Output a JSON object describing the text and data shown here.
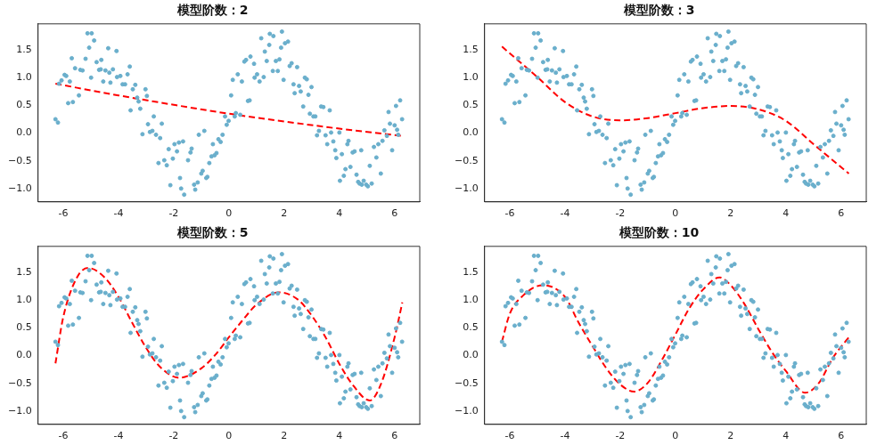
{
  "chart_data": [
    {
      "type": "scatter",
      "title": "模型阶数：2",
      "xlim": [
        -6.91,
        6.91
      ],
      "xticks": [
        -6,
        -4,
        -2,
        0,
        2,
        4,
        6
      ],
      "ylim": [
        -1.24,
        1.97
      ],
      "yticks": [
        {
          "value": -1,
          "label": "−1.0"
        },
        {
          "value": -0.5,
          "label": "−0.5"
        },
        {
          "value": 0,
          "label": "0.0"
        },
        {
          "value": 0.5,
          "label": "0.5"
        },
        {
          "value": 1,
          "label": "1.0"
        },
        {
          "value": 1.5,
          "label": "1.5"
        }
      ],
      "grid": false,
      "legend": false,
      "series": [
        {
          "type": "scatter",
          "marker": "circle",
          "color": "#6aafcc",
          "x": [
            -6.28,
            -6.19,
            -6.15,
            -6.06,
            -5.95,
            -5.89,
            -5.82,
            -5.76,
            -5.65,
            -5.69,
            -5.57,
            -5.43,
            -5.38,
            -5.3,
            -5.19,
            -5.12,
            -4.97,
            -4.99,
            -4.88,
            -5.06,
            -4.79,
            -4.7,
            -4.64,
            -4.62,
            -4.55,
            -4.47,
            -4.37,
            -4.33,
            -4.29,
            -4.2,
            -4.07,
            -4.05,
            -3.93,
            -3.85,
            -3.76,
            -3.67,
            -3.59,
            -3.56,
            -3.48,
            -3.39,
            -3.32,
            -3.27,
            -3.21,
            -3.13,
            -3.02,
            -2.97,
            -2.93,
            -2.86,
            -2.77,
            -2.72,
            -2.64,
            -2.55,
            -2.49,
            -2.43,
            -2.34,
            -2.25,
            -2.18,
            -2.12,
            -2.03,
            -1.97,
            -1.88,
            -1.81,
            -1.77,
            -1.73,
            -1.66,
            -1.62,
            -1.48,
            -1.39,
            -1.35,
            -1.26,
            -1.22,
            -1.13,
            -1.09,
            -1,
            -0.95,
            -0.89,
            -0.82,
            -0.78,
            -0.71,
            -0.63,
            -0.58,
            -0.52,
            -0.45,
            -0.38,
            -0.3,
            -0.23,
            -0.14,
            -0.08,
            -0.01,
            0.08,
            0.14,
            0.21,
            0.25,
            0.32,
            0.41,
            0.47,
            0.56,
            0.62,
            0.69,
            0.75,
            0.78,
            0.91,
            0.93,
            1.02,
            1.11,
            1.17,
            1.26,
            1.3,
            1.37,
            1.46,
            1.48,
            1.59,
            1.61,
            1.7,
            1.77,
            1.83,
            1.89,
            1.92,
            1.98,
            2.03,
            2.14,
            2.2,
            2.27,
            2.34,
            2.38,
            2.47,
            2.54,
            2.6,
            2.69,
            2.75,
            2.82,
            2.88,
            2.93,
            2.99,
            3.06,
            3.13,
            3.19,
            3.26,
            3.34,
            3.42,
            3.5,
            3.56,
            3.65,
            3.7,
            3.78,
            3.85,
            3.89,
            4,
            4.02,
            4.09,
            4.16,
            4.22,
            4.29,
            4.33,
            4.4,
            4.48,
            4.55,
            4.62,
            4.68,
            4.73,
            4.79,
            4.81,
            4.88,
            4.97,
            5.03,
            5.1,
            5.17,
            5.25,
            5.34,
            5.41,
            5.5,
            5.56,
            5.63,
            5.72,
            5.78,
            5.83,
            5.91,
            6,
            6.05,
            6.09,
            6.13,
            6.2,
            6.27
          ],
          "values": [
            0.25,
            0.19,
            0.89,
            0.95,
            1.05,
            1.03,
            0.54,
            0.93,
            0.56,
            1.35,
            1.17,
            0.68,
            1.14,
            1.13,
            1.34,
            1.8,
            1.8,
            1,
            1.67,
            1.54,
            1.28,
            1.14,
            1.15,
            1.32,
            0.93,
            1.13,
            1.53,
            1.09,
            0.91,
            1.15,
            1.48,
            1.01,
            1.03,
            0.88,
            0.88,
            1.06,
            1.2,
            0.41,
            0.79,
            0.87,
            0.64,
            0.57,
            0.44,
            -0.02,
            0.79,
            0.67,
            0.16,
            0.02,
            0.04,
            0.3,
            -0.03,
            -0.54,
            -0.09,
            0.17,
            -0.49,
            -0.58,
            -0.29,
            -0.94,
            -0.46,
            -0.2,
            -0.33,
            -0.17,
            -0.81,
            -1,
            -0.15,
            -1.11,
            -0.49,
            -0.35,
            -0.28,
            -0.93,
            -1.02,
            -0.89,
            -0.03,
            -0.73,
            -0.68,
            0.04,
            -0.81,
            -0.79,
            -0.54,
            -0.42,
            -0.2,
            -0.4,
            -0.36,
            -0.11,
            -0.16,
            -0.03,
            0.3,
            0.15,
            0.22,
            0.68,
            0.96,
            0.3,
            0.36,
            1.06,
            0.33,
            0.93,
            1.29,
            1.32,
            0.58,
            0.59,
            1.38,
            1.25,
            1,
            1.06,
            0.93,
            1.71,
            1.01,
            1.47,
            1.3,
            1.59,
            1.79,
            1.12,
            1.75,
            1.3,
            1.12,
            1.33,
            1.54,
            1.83,
            0.96,
            1.62,
            1.65,
            1.21,
            1.26,
            0.88,
            0.72,
            1.19,
            0.85,
            0.75,
            0.48,
            1,
            0.97,
            0.69,
            0.35,
            0.83,
            0.3,
            0.3,
            -0.04,
            0.04,
            0.48,
            0.47,
            -0.04,
            -0.2,
            0.41,
            0.01,
            -0.15,
            -0.31,
            -0.45,
            0.01,
            -0.86,
            -0.38,
            -0.77,
            -0.65,
            -0.2,
            -0.14,
            -0.61,
            -0.35,
            -0.33,
            -0.75,
            -0.88,
            -0.91,
            -0.31,
            -0.93,
            -0.86,
            -0.93,
            -0.96,
            -0.59,
            -0.91,
            -0.25,
            -0.44,
            -0.2,
            -0.73,
            -0.14,
            0.05,
            -0.05,
            0.38,
            0.17,
            -0.31,
            0.14,
            0.49,
            0.06,
            -0.03,
            0.59,
            0.25
          ]
        },
        {
          "type": "line",
          "marker": "none",
          "line_style": "dashed",
          "color": "#ff0000",
          "x": [
            -6.28,
            -4,
            -2,
            0,
            2,
            4,
            6.28
          ],
          "values": [
            0.89,
            0.68,
            0.51,
            0.35,
            0.21,
            0.08,
            -0.05
          ]
        }
      ]
    },
    {
      "type": "scatter",
      "title": "模型阶数：3",
      "xlim": [
        -6.91,
        6.91
      ],
      "xticks": [
        -6,
        -4,
        -2,
        0,
        2,
        4,
        6
      ],
      "ylim": [
        -1.24,
        1.97
      ],
      "yticks": [
        {
          "value": -1,
          "label": "−1.0"
        },
        {
          "value": -0.5,
          "label": "−0.5"
        },
        {
          "value": 0,
          "label": "0.0"
        },
        {
          "value": 0.5,
          "label": "0.5"
        },
        {
          "value": 1,
          "label": "1.0"
        },
        {
          "value": 1.5,
          "label": "1.5"
        }
      ],
      "grid": false,
      "legend": false,
      "series": [
        {
          "type": "scatter",
          "marker": "circle",
          "color": "#6aafcc",
          "x": [
            -6.28,
            -6.19,
            -6.15,
            -6.06,
            -5.95,
            -5.89,
            -5.82,
            -5.76,
            -5.65,
            -5.69,
            -5.57,
            -5.43,
            -5.38,
            -5.3,
            -5.19,
            -5.12,
            -4.97,
            -4.99,
            -4.88,
            -5.06,
            -4.79,
            -4.7,
            -4.64,
            -4.62,
            -4.55,
            -4.47,
            -4.37,
            -4.33,
            -4.29,
            -4.2,
            -4.07,
            -4.05,
            -3.93,
            -3.85,
            -3.76,
            -3.67,
            -3.59,
            -3.56,
            -3.48,
            -3.39,
            -3.32,
            -3.27,
            -3.21,
            -3.13,
            -3.02,
            -2.97,
            -2.93,
            -2.86,
            -2.77,
            -2.72,
            -2.64,
            -2.55,
            -2.49,
            -2.43,
            -2.34,
            -2.25,
            -2.18,
            -2.12,
            -2.03,
            -1.97,
            -1.88,
            -1.81,
            -1.77,
            -1.73,
            -1.66,
            -1.62,
            -1.48,
            -1.39,
            -1.35,
            -1.26,
            -1.22,
            -1.13,
            -1.09,
            -1,
            -0.95,
            -0.89,
            -0.82,
            -0.78,
            -0.71,
            -0.63,
            -0.58,
            -0.52,
            -0.45,
            -0.38,
            -0.3,
            -0.23,
            -0.14,
            -0.08,
            -0.01,
            0.08,
            0.14,
            0.21,
            0.25,
            0.32,
            0.41,
            0.47,
            0.56,
            0.62,
            0.69,
            0.75,
            0.78,
            0.91,
            0.93,
            1.02,
            1.11,
            1.17,
            1.26,
            1.3,
            1.37,
            1.46,
            1.48,
            1.59,
            1.61,
            1.7,
            1.77,
            1.83,
            1.89,
            1.92,
            1.98,
            2.03,
            2.14,
            2.2,
            2.27,
            2.34,
            2.38,
            2.47,
            2.54,
            2.6,
            2.69,
            2.75,
            2.82,
            2.88,
            2.93,
            2.99,
            3.06,
            3.13,
            3.19,
            3.26,
            3.34,
            3.42,
            3.5,
            3.56,
            3.65,
            3.7,
            3.78,
            3.85,
            3.89,
            4,
            4.02,
            4.09,
            4.16,
            4.22,
            4.29,
            4.33,
            4.4,
            4.48,
            4.55,
            4.62,
            4.68,
            4.73,
            4.79,
            4.81,
            4.88,
            4.97,
            5.03,
            5.1,
            5.17,
            5.25,
            5.34,
            5.41,
            5.5,
            5.56,
            5.63,
            5.72,
            5.78,
            5.83,
            5.91,
            6,
            6.05,
            6.09,
            6.13,
            6.2,
            6.27
          ],
          "values": [
            0.25,
            0.19,
            0.89,
            0.95,
            1.05,
            1.03,
            0.54,
            0.93,
            0.56,
            1.35,
            1.17,
            0.68,
            1.14,
            1.13,
            1.34,
            1.8,
            1.8,
            1,
            1.67,
            1.54,
            1.28,
            1.14,
            1.15,
            1.32,
            0.93,
            1.13,
            1.53,
            1.09,
            0.91,
            1.15,
            1.48,
            1.01,
            1.03,
            0.88,
            0.88,
            1.06,
            1.2,
            0.41,
            0.79,
            0.87,
            0.64,
            0.57,
            0.44,
            -0.02,
            0.79,
            0.67,
            0.16,
            0.02,
            0.04,
            0.3,
            -0.03,
            -0.54,
            -0.09,
            0.17,
            -0.49,
            -0.58,
            -0.29,
            -0.94,
            -0.46,
            -0.2,
            -0.33,
            -0.17,
            -0.81,
            -1,
            -0.15,
            -1.11,
            -0.49,
            -0.35,
            -0.28,
            -0.93,
            -1.02,
            -0.89,
            -0.03,
            -0.73,
            -0.68,
            0.04,
            -0.81,
            -0.79,
            -0.54,
            -0.42,
            -0.2,
            -0.4,
            -0.36,
            -0.11,
            -0.16,
            -0.03,
            0.3,
            0.15,
            0.22,
            0.68,
            0.96,
            0.3,
            0.36,
            1.06,
            0.33,
            0.93,
            1.29,
            1.32,
            0.58,
            0.59,
            1.38,
            1.25,
            1,
            1.06,
            0.93,
            1.71,
            1.01,
            1.47,
            1.3,
            1.59,
            1.79,
            1.12,
            1.75,
            1.3,
            1.12,
            1.33,
            1.54,
            1.83,
            0.96,
            1.62,
            1.65,
            1.21,
            1.26,
            0.88,
            0.72,
            1.19,
            0.85,
            0.75,
            0.48,
            1,
            0.97,
            0.69,
            0.35,
            0.83,
            0.3,
            0.3,
            -0.04,
            0.04,
            0.48,
            0.47,
            -0.04,
            -0.2,
            0.41,
            0.01,
            -0.15,
            -0.31,
            -0.45,
            0.01,
            -0.86,
            -0.38,
            -0.77,
            -0.65,
            -0.2,
            -0.14,
            -0.61,
            -0.35,
            -0.33,
            -0.75,
            -0.88,
            -0.91,
            -0.31,
            -0.93,
            -0.86,
            -0.93,
            -0.96,
            -0.59,
            -0.91,
            -0.25,
            -0.44,
            -0.2,
            -0.73,
            -0.14,
            0.05,
            -0.05,
            0.38,
            0.17,
            -0.31,
            0.14,
            0.49,
            0.06,
            -0.03,
            0.59,
            0.25
          ]
        },
        {
          "type": "line",
          "marker": "none",
          "line_style": "dashed",
          "color": "#ff0000",
          "x": [
            -6.28,
            -5,
            -4,
            -3,
            -2,
            -1,
            0,
            1,
            2,
            3,
            4,
            5,
            6.28
          ],
          "values": [
            1.56,
            1.01,
            0.56,
            0.3,
            0.23,
            0.27,
            0.36,
            0.45,
            0.49,
            0.43,
            0.22,
            -0.2,
            -0.73
          ]
        }
      ]
    },
    {
      "type": "scatter",
      "title": "模型阶数：5",
      "xlim": [
        -6.91,
        6.91
      ],
      "xticks": [
        -6,
        -4,
        -2,
        0,
        2,
        4,
        6
      ],
      "ylim": [
        -1.24,
        1.97
      ],
      "yticks": [
        {
          "value": -1,
          "label": "−1.0"
        },
        {
          "value": -0.5,
          "label": "−0.5"
        },
        {
          "value": 0,
          "label": "0.0"
        },
        {
          "value": 0.5,
          "label": "0.5"
        },
        {
          "value": 1,
          "label": "1.0"
        },
        {
          "value": 1.5,
          "label": "1.5"
        }
      ],
      "grid": false,
      "legend": false,
      "series": [
        {
          "type": "scatter",
          "marker": "circle",
          "color": "#6aafcc",
          "x": [
            -6.28,
            -6.19,
            -6.15,
            -6.06,
            -5.95,
            -5.89,
            -5.82,
            -5.76,
            -5.65,
            -5.69,
            -5.57,
            -5.43,
            -5.38,
            -5.3,
            -5.19,
            -5.12,
            -4.97,
            -4.99,
            -4.88,
            -5.06,
            -4.79,
            -4.7,
            -4.64,
            -4.62,
            -4.55,
            -4.47,
            -4.37,
            -4.33,
            -4.29,
            -4.2,
            -4.07,
            -4.05,
            -3.93,
            -3.85,
            -3.76,
            -3.67,
            -3.59,
            -3.56,
            -3.48,
            -3.39,
            -3.32,
            -3.27,
            -3.21,
            -3.13,
            -3.02,
            -2.97,
            -2.93,
            -2.86,
            -2.77,
            -2.72,
            -2.64,
            -2.55,
            -2.49,
            -2.43,
            -2.34,
            -2.25,
            -2.18,
            -2.12,
            -2.03,
            -1.97,
            -1.88,
            -1.81,
            -1.77,
            -1.73,
            -1.66,
            -1.62,
            -1.48,
            -1.39,
            -1.35,
            -1.26,
            -1.22,
            -1.13,
            -1.09,
            -1,
            -0.95,
            -0.89,
            -0.82,
            -0.78,
            -0.71,
            -0.63,
            -0.58,
            -0.52,
            -0.45,
            -0.38,
            -0.3,
            -0.23,
            -0.14,
            -0.08,
            -0.01,
            0.08,
            0.14,
            0.21,
            0.25,
            0.32,
            0.41,
            0.47,
            0.56,
            0.62,
            0.69,
            0.75,
            0.78,
            0.91,
            0.93,
            1.02,
            1.11,
            1.17,
            1.26,
            1.3,
            1.37,
            1.46,
            1.48,
            1.59,
            1.61,
            1.7,
            1.77,
            1.83,
            1.89,
            1.92,
            1.98,
            2.03,
            2.14,
            2.2,
            2.27,
            2.34,
            2.38,
            2.47,
            2.54,
            2.6,
            2.69,
            2.75,
            2.82,
            2.88,
            2.93,
            2.99,
            3.06,
            3.13,
            3.19,
            3.26,
            3.34,
            3.42,
            3.5,
            3.56,
            3.65,
            3.7,
            3.78,
            3.85,
            3.89,
            4,
            4.02,
            4.09,
            4.16,
            4.22,
            4.29,
            4.33,
            4.4,
            4.48,
            4.55,
            4.62,
            4.68,
            4.73,
            4.79,
            4.81,
            4.88,
            4.97,
            5.03,
            5.1,
            5.17,
            5.25,
            5.34,
            5.41,
            5.5,
            5.56,
            5.63,
            5.72,
            5.78,
            5.83,
            5.91,
            6,
            6.05,
            6.09,
            6.13,
            6.2,
            6.27
          ],
          "values": [
            0.25,
            0.19,
            0.89,
            0.95,
            1.05,
            1.03,
            0.54,
            0.93,
            0.56,
            1.35,
            1.17,
            0.68,
            1.14,
            1.13,
            1.34,
            1.8,
            1.8,
            1,
            1.67,
            1.54,
            1.28,
            1.14,
            1.15,
            1.32,
            0.93,
            1.13,
            1.53,
            1.09,
            0.91,
            1.15,
            1.48,
            1.01,
            1.03,
            0.88,
            0.88,
            1.06,
            1.2,
            0.41,
            0.79,
            0.87,
            0.64,
            0.57,
            0.44,
            -0.02,
            0.79,
            0.67,
            0.16,
            0.02,
            0.04,
            0.3,
            -0.03,
            -0.54,
            -0.09,
            0.17,
            -0.49,
            -0.58,
            -0.29,
            -0.94,
            -0.46,
            -0.2,
            -0.33,
            -0.17,
            -0.81,
            -1,
            -0.15,
            -1.11,
            -0.49,
            -0.35,
            -0.28,
            -0.93,
            -1.02,
            -0.89,
            -0.03,
            -0.73,
            -0.68,
            0.04,
            -0.81,
            -0.79,
            -0.54,
            -0.42,
            -0.2,
            -0.4,
            -0.36,
            -0.11,
            -0.16,
            -0.03,
            0.3,
            0.15,
            0.22,
            0.68,
            0.96,
            0.3,
            0.36,
            1.06,
            0.33,
            0.93,
            1.29,
            1.32,
            0.58,
            0.59,
            1.38,
            1.25,
            1,
            1.06,
            0.93,
            1.71,
            1.01,
            1.47,
            1.3,
            1.59,
            1.79,
            1.12,
            1.75,
            1.3,
            1.12,
            1.33,
            1.54,
            1.83,
            0.96,
            1.62,
            1.65,
            1.21,
            1.26,
            0.88,
            0.72,
            1.19,
            0.85,
            0.75,
            0.48,
            1,
            0.97,
            0.69,
            0.35,
            0.83,
            0.3,
            0.3,
            -0.04,
            0.04,
            0.48,
            0.47,
            -0.04,
            -0.2,
            0.41,
            0.01,
            -0.15,
            -0.31,
            -0.45,
            0.01,
            -0.86,
            -0.38,
            -0.77,
            -0.65,
            -0.2,
            -0.14,
            -0.61,
            -0.35,
            -0.33,
            -0.75,
            -0.88,
            -0.91,
            -0.31,
            -0.93,
            -0.86,
            -0.93,
            -0.96,
            -0.59,
            -0.91,
            -0.25,
            -0.44,
            -0.2,
            -0.73,
            -0.14,
            0.05,
            -0.05,
            0.38,
            0.17,
            -0.31,
            0.14,
            0.49,
            0.06,
            -0.03,
            0.59,
            0.25
          ]
        },
        {
          "type": "line",
          "marker": "none",
          "line_style": "dashed",
          "color": "#ff0000",
          "x": [
            -6.28,
            -6,
            -5.5,
            -5.1,
            -4.5,
            -4,
            -3.5,
            -3,
            -2.5,
            -1.8,
            -1,
            -0.5,
            0,
            0.5,
            1,
            1.8,
            2.5,
            3,
            3.5,
            4,
            4.5,
            5.1,
            5.5,
            6,
            6.28
          ],
          "values": [
            -0.14,
            0.69,
            1.41,
            1.58,
            1.41,
            1.06,
            0.59,
            0.14,
            -0.2,
            -0.4,
            -0.23,
            0.01,
            0.33,
            0.64,
            0.92,
            1.14,
            1.01,
            0.72,
            0.33,
            -0.15,
            -0.54,
            -0.81,
            -0.52,
            0.33,
            0.96
          ]
        }
      ]
    },
    {
      "type": "scatter",
      "title": "模型阶数：10",
      "xlim": [
        -6.91,
        6.91
      ],
      "xticks": [
        -6,
        -4,
        -2,
        0,
        2,
        4,
        6
      ],
      "ylim": [
        -1.24,
        1.97
      ],
      "yticks": [
        {
          "value": -1,
          "label": "−1.0"
        },
        {
          "value": -0.5,
          "label": "−0.5"
        },
        {
          "value": 0,
          "label": "0.0"
        },
        {
          "value": 0.5,
          "label": "0.5"
        },
        {
          "value": 1,
          "label": "1.0"
        },
        {
          "value": 1.5,
          "label": "1.5"
        }
      ],
      "grid": false,
      "legend": false,
      "series": [
        {
          "type": "scatter",
          "marker": "circle",
          "color": "#6aafcc",
          "x": [
            -6.28,
            -6.19,
            -6.15,
            -6.06,
            -5.95,
            -5.89,
            -5.82,
            -5.76,
            -5.65,
            -5.69,
            -5.57,
            -5.43,
            -5.38,
            -5.3,
            -5.19,
            -5.12,
            -4.97,
            -4.99,
            -4.88,
            -5.06,
            -4.79,
            -4.7,
            -4.64,
            -4.62,
            -4.55,
            -4.47,
            -4.37,
            -4.33,
            -4.29,
            -4.2,
            -4.07,
            -4.05,
            -3.93,
            -3.85,
            -3.76,
            -3.67,
            -3.59,
            -3.56,
            -3.48,
            -3.39,
            -3.32,
            -3.27,
            -3.21,
            -3.13,
            -3.02,
            -2.97,
            -2.93,
            -2.86,
            -2.77,
            -2.72,
            -2.64,
            -2.55,
            -2.49,
            -2.43,
            -2.34,
            -2.25,
            -2.18,
            -2.12,
            -2.03,
            -1.97,
            -1.88,
            -1.81,
            -1.77,
            -1.73,
            -1.66,
            -1.62,
            -1.48,
            -1.39,
            -1.35,
            -1.26,
            -1.22,
            -1.13,
            -1.09,
            -1,
            -0.95,
            -0.89,
            -0.82,
            -0.78,
            -0.71,
            -0.63,
            -0.58,
            -0.52,
            -0.45,
            -0.38,
            -0.3,
            -0.23,
            -0.14,
            -0.08,
            -0.01,
            0.08,
            0.14,
            0.21,
            0.25,
            0.32,
            0.41,
            0.47,
            0.56,
            0.62,
            0.69,
            0.75,
            0.78,
            0.91,
            0.93,
            1.02,
            1.11,
            1.17,
            1.26,
            1.3,
            1.37,
            1.46,
            1.48,
            1.59,
            1.61,
            1.7,
            1.77,
            1.83,
            1.89,
            1.92,
            1.98,
            2.03,
            2.14,
            2.2,
            2.27,
            2.34,
            2.38,
            2.47,
            2.54,
            2.6,
            2.69,
            2.75,
            2.82,
            2.88,
            2.93,
            2.99,
            3.06,
            3.13,
            3.19,
            3.26,
            3.34,
            3.42,
            3.5,
            3.56,
            3.65,
            3.7,
            3.78,
            3.85,
            3.89,
            4,
            4.02,
            4.09,
            4.16,
            4.22,
            4.29,
            4.33,
            4.4,
            4.48,
            4.55,
            4.62,
            4.68,
            4.73,
            4.79,
            4.81,
            4.88,
            4.97,
            5.03,
            5.1,
            5.17,
            5.25,
            5.34,
            5.41,
            5.5,
            5.56,
            5.63,
            5.72,
            5.78,
            5.83,
            5.91,
            6,
            6.05,
            6.09,
            6.13,
            6.2,
            6.27
          ],
          "values": [
            0.25,
            0.19,
            0.89,
            0.95,
            1.05,
            1.03,
            0.54,
            0.93,
            0.56,
            1.35,
            1.17,
            0.68,
            1.14,
            1.13,
            1.34,
            1.8,
            1.8,
            1,
            1.67,
            1.54,
            1.28,
            1.14,
            1.15,
            1.32,
            0.93,
            1.13,
            1.53,
            1.09,
            0.91,
            1.15,
            1.48,
            1.01,
            1.03,
            0.88,
            0.88,
            1.06,
            1.2,
            0.41,
            0.79,
            0.87,
            0.64,
            0.57,
            0.44,
            -0.02,
            0.79,
            0.67,
            0.16,
            0.02,
            0.04,
            0.3,
            -0.03,
            -0.54,
            -0.09,
            0.17,
            -0.49,
            -0.58,
            -0.29,
            -0.94,
            -0.46,
            -0.2,
            -0.33,
            -0.17,
            -0.81,
            -1,
            -0.15,
            -1.11,
            -0.49,
            -0.35,
            -0.28,
            -0.93,
            -1.02,
            -0.89,
            -0.03,
            -0.73,
            -0.68,
            0.04,
            -0.81,
            -0.79,
            -0.54,
            -0.42,
            -0.2,
            -0.4,
            -0.36,
            -0.11,
            -0.16,
            -0.03,
            0.3,
            0.15,
            0.22,
            0.68,
            0.96,
            0.3,
            0.36,
            1.06,
            0.33,
            0.93,
            1.29,
            1.32,
            0.58,
            0.59,
            1.38,
            1.25,
            1,
            1.06,
            0.93,
            1.71,
            1.01,
            1.47,
            1.3,
            1.59,
            1.79,
            1.12,
            1.75,
            1.3,
            1.12,
            1.33,
            1.54,
            1.83,
            0.96,
            1.62,
            1.65,
            1.21,
            1.26,
            0.88,
            0.72,
            1.19,
            0.85,
            0.75,
            0.48,
            1,
            0.97,
            0.69,
            0.35,
            0.83,
            0.3,
            0.3,
            -0.04,
            0.04,
            0.48,
            0.47,
            -0.04,
            -0.2,
            0.41,
            0.01,
            -0.15,
            -0.31,
            -0.45,
            0.01,
            -0.86,
            -0.38,
            -0.77,
            -0.65,
            -0.2,
            -0.14,
            -0.61,
            -0.35,
            -0.33,
            -0.75,
            -0.88,
            -0.91,
            -0.31,
            -0.93,
            -0.86,
            -0.93,
            -0.96,
            -0.59,
            -0.91,
            -0.25,
            -0.44,
            -0.2,
            -0.73,
            -0.14,
            0.05,
            -0.05,
            0.38,
            0.17,
            -0.31,
            0.14,
            0.49,
            0.06,
            -0.03,
            0.59,
            0.25
          ]
        },
        {
          "type": "line",
          "marker": "none",
          "line_style": "dashed",
          "color": "#ff0000",
          "x": [
            -6.28,
            -6,
            -5.5,
            -4.8,
            -4,
            -3.5,
            -3,
            -2.5,
            -2,
            -1.5,
            -1,
            -0.5,
            0,
            0.5,
            1,
            1.6,
            2,
            2.5,
            3,
            3.5,
            4,
            4.7,
            5.2,
            5.7,
            6.28
          ],
          "values": [
            0.25,
            0.75,
            1.09,
            1.27,
            1.06,
            0.59,
            0.17,
            -0.23,
            -0.52,
            -0.65,
            -0.49,
            -0.09,
            0.38,
            0.85,
            1.19,
            1.41,
            1.27,
            0.93,
            0.48,
            0.06,
            -0.28,
            -0.67,
            -0.49,
            -0.04,
            0.33
          ]
        }
      ]
    }
  ]
}
